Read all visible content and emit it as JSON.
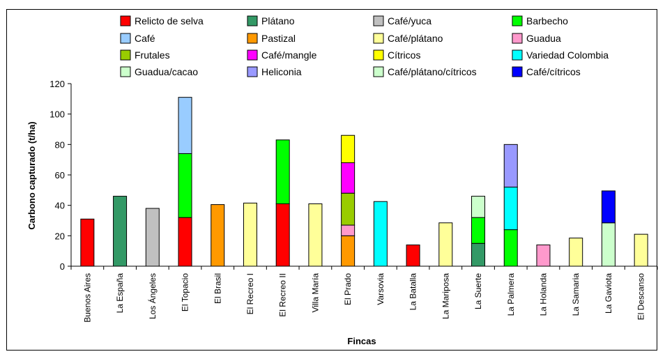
{
  "chart_data": {
    "type": "bar",
    "stacked": true,
    "xlabel": "Fincas",
    "ylabel": "Carbono capturado (t/ha)",
    "ylim": [
      0,
      120
    ],
    "yticks": [
      0,
      20,
      40,
      60,
      80,
      100,
      120
    ],
    "grid": false,
    "legend_position": "top",
    "categories": [
      "Buenos Aires",
      "La España",
      "Los Ángeles",
      "El Topacio",
      "El Brasil",
      "El Recreo I",
      "El Recreo II",
      "Villa María",
      "El Prado",
      "Varsovia",
      "La Batalla",
      "La Mariposa",
      "La Suerte",
      "La Palmera",
      "La Holanda",
      "La Samaria",
      "La Gaviota",
      "El Descanso"
    ],
    "series": [
      {
        "name": "Relicto de selva",
        "color": "#ff0000",
        "values": [
          31,
          0,
          0,
          32,
          0,
          0,
          41,
          0,
          0,
          0,
          14,
          0,
          0,
          0,
          0,
          0,
          0,
          0
        ]
      },
      {
        "name": "Plátano",
        "color": "#339966",
        "values": [
          0,
          46,
          0,
          0,
          0,
          0,
          0,
          0,
          0,
          0,
          0,
          0,
          15,
          0,
          0,
          0,
          0,
          0
        ]
      },
      {
        "name": "Café/yuca",
        "color": "#c0c0c0",
        "values": [
          0,
          0,
          38,
          0,
          0,
          0,
          0,
          0,
          0,
          0,
          0,
          0,
          0,
          0,
          0,
          0,
          0,
          0
        ]
      },
      {
        "name": "Barbecho",
        "color": "#00ff00",
        "values": [
          0,
          0,
          0,
          42,
          0,
          0,
          42,
          0,
          0,
          0,
          0,
          0,
          17,
          24,
          0,
          0,
          0,
          0
        ]
      },
      {
        "name": "Café",
        "color": "#99ccff",
        "values": [
          0,
          0,
          0,
          37,
          0,
          0,
          0,
          0,
          0,
          0,
          0,
          0,
          0,
          0,
          0,
          0,
          0,
          0
        ]
      },
      {
        "name": "Pastizal",
        "color": "#ff9900",
        "values": [
          0,
          0,
          0,
          0,
          40.5,
          0,
          0,
          0,
          20,
          0,
          0,
          0,
          0,
          0,
          0,
          0,
          0,
          0
        ]
      },
      {
        "name": "Café/plátano",
        "color": "#ffff99",
        "values": [
          0,
          0,
          0,
          0,
          0,
          41.5,
          0,
          41,
          0,
          0,
          0,
          28.5,
          0,
          0,
          0,
          18.5,
          0,
          21
        ]
      },
      {
        "name": "Guadua",
        "color": "#ff99cc",
        "values": [
          0,
          0,
          0,
          0,
          0,
          0,
          0,
          0,
          7,
          0,
          0,
          0,
          0,
          0,
          14,
          0,
          0,
          0
        ]
      },
      {
        "name": "Frutales",
        "color": "#99cc00",
        "values": [
          0,
          0,
          0,
          0,
          0,
          0,
          0,
          0,
          21,
          0,
          0,
          0,
          0,
          0,
          0,
          0,
          0,
          0
        ]
      },
      {
        "name": "Café/mangle",
        "color": "#ff00ff",
        "values": [
          0,
          0,
          0,
          0,
          0,
          0,
          0,
          0,
          20,
          0,
          0,
          0,
          0,
          0,
          0,
          0,
          0,
          0
        ]
      },
      {
        "name": "Cítricos",
        "color": "#ffff00",
        "values": [
          0,
          0,
          0,
          0,
          0,
          0,
          0,
          0,
          18,
          0,
          0,
          0,
          0,
          0,
          0,
          0,
          0,
          0
        ]
      },
      {
        "name": "Variedad Colombia",
        "color": "#00ffff",
        "values": [
          0,
          0,
          0,
          0,
          0,
          0,
          0,
          0,
          0,
          42.5,
          0,
          0,
          0,
          28,
          0,
          0,
          0,
          0
        ]
      },
      {
        "name": "Guadua/cacao",
        "color": "#ccffcc",
        "values": [
          0,
          0,
          0,
          0,
          0,
          0,
          0,
          0,
          0,
          0,
          0,
          0,
          14,
          0,
          0,
          0,
          0,
          0
        ]
      },
      {
        "name": "Heliconia",
        "color": "#9999ff",
        "values": [
          0,
          0,
          0,
          0,
          0,
          0,
          0,
          0,
          0,
          0,
          0,
          0,
          0,
          28,
          0,
          0,
          0,
          0
        ]
      },
      {
        "name": "Café/plátano/cítricos",
        "color": "#ccffcc",
        "values": [
          0,
          0,
          0,
          0,
          0,
          0,
          0,
          0,
          0,
          0,
          0,
          0,
          0,
          0,
          0,
          0,
          28.5,
          0
        ]
      },
      {
        "name": "Café/cítricos",
        "color": "#0000ff",
        "values": [
          0,
          0,
          0,
          0,
          0,
          0,
          0,
          0,
          0,
          0,
          0,
          0,
          0,
          0,
          0,
          0,
          21,
          0
        ]
      }
    ]
  }
}
